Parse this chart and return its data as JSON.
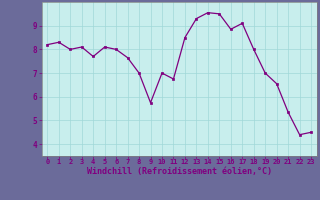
{
  "x": [
    0,
    1,
    2,
    3,
    4,
    5,
    6,
    7,
    8,
    9,
    10,
    11,
    12,
    13,
    14,
    15,
    16,
    17,
    18,
    19,
    20,
    21,
    22,
    23
  ],
  "y": [
    8.2,
    8.3,
    8.0,
    8.1,
    7.7,
    8.1,
    8.0,
    7.65,
    7.0,
    5.75,
    7.0,
    6.75,
    8.5,
    9.3,
    9.55,
    9.5,
    8.85,
    9.1,
    8.0,
    7.0,
    6.55,
    5.35,
    4.4,
    4.5
  ],
  "xlabel": "Windchill (Refroidissement éolien,°C)",
  "xlim": [
    -0.5,
    23.5
  ],
  "ylim": [
    3.5,
    10.0
  ],
  "yticks": [
    4,
    5,
    6,
    7,
    8,
    9
  ],
  "xticks": [
    0,
    1,
    2,
    3,
    4,
    5,
    6,
    7,
    8,
    9,
    10,
    11,
    12,
    13,
    14,
    15,
    16,
    17,
    18,
    19,
    20,
    21,
    22,
    23
  ],
  "line_color": "#800080",
  "marker_color": "#800080",
  "bg_color": "#c8eeed",
  "grid_color": "#a0d8d8",
  "fig_bg": "#6b6b9a",
  "xlabel_color": "#800080",
  "tick_color": "#800080",
  "spine_color": "#808080"
}
